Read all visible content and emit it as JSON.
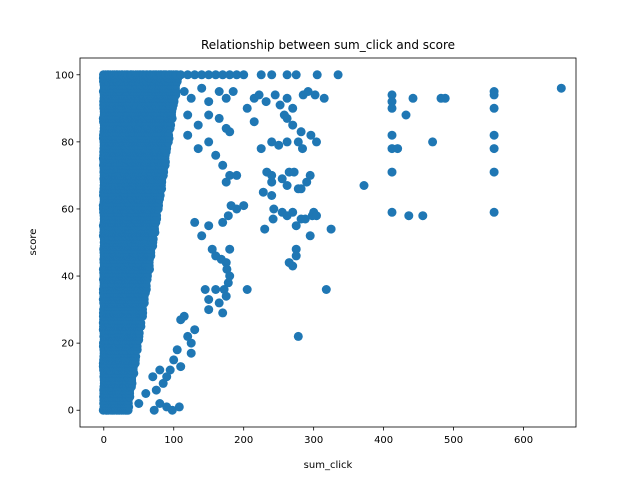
{
  "chart_data": {
    "type": "scatter",
    "title": "Relationship between sum_click and score",
    "xlabel": "sum_click",
    "ylabel": "score",
    "xlim": [
      -34,
      675
    ],
    "ylim": [
      -5,
      105
    ],
    "xticks": [
      0,
      100,
      200,
      300,
      400,
      500,
      600
    ],
    "yticks": [
      0,
      20,
      40,
      60,
      80,
      100
    ],
    "grid": false,
    "color": "#1f77b4",
    "dense_region": {
      "description": "many overlapping points",
      "x_range": [
        0,
        110
      ],
      "y_range": [
        0,
        100
      ]
    },
    "points": [
      [
        110,
        100
      ],
      [
        120,
        100
      ],
      [
        130,
        100
      ],
      [
        140,
        100
      ],
      [
        150,
        100
      ],
      [
        160,
        100
      ],
      [
        170,
        100
      ],
      [
        180,
        100
      ],
      [
        190,
        100
      ],
      [
        200,
        100
      ],
      [
        225,
        100
      ],
      [
        240,
        100
      ],
      [
        262,
        100
      ],
      [
        275,
        100
      ],
      [
        305,
        100
      ],
      [
        335,
        100
      ],
      [
        115,
        95
      ],
      [
        125,
        93
      ],
      [
        140,
        96
      ],
      [
        150,
        92
      ],
      [
        165,
        95
      ],
      [
        175,
        93
      ],
      [
        185,
        95
      ],
      [
        205,
        90
      ],
      [
        215,
        93
      ],
      [
        222,
        94
      ],
      [
        232,
        92
      ],
      [
        245,
        94
      ],
      [
        252,
        91
      ],
      [
        262,
        93
      ],
      [
        270,
        90
      ],
      [
        285,
        94
      ],
      [
        292,
        95
      ],
      [
        302,
        94
      ],
      [
        315,
        93
      ],
      [
        120,
        88
      ],
      [
        135,
        85
      ],
      [
        150,
        88
      ],
      [
        165,
        87
      ],
      [
        175,
        84
      ],
      [
        180,
        83
      ],
      [
        215,
        86
      ],
      [
        258,
        88
      ],
      [
        262,
        87
      ],
      [
        270,
        85
      ],
      [
        282,
        83
      ],
      [
        296,
        82
      ],
      [
        262,
        80
      ],
      [
        278,
        80
      ],
      [
        284,
        78
      ],
      [
        304,
        80
      ],
      [
        225,
        78
      ],
      [
        240,
        80
      ],
      [
        250,
        79
      ],
      [
        120,
        82
      ],
      [
        135,
        78
      ],
      [
        150,
        80
      ],
      [
        160,
        76
      ],
      [
        170,
        73
      ],
      [
        180,
        70
      ],
      [
        175,
        68
      ],
      [
        190,
        70
      ],
      [
        233,
        71
      ],
      [
        240,
        68
      ],
      [
        240,
        70
      ],
      [
        255,
        69
      ],
      [
        262,
        67
      ],
      [
        265,
        71
      ],
      [
        272,
        71
      ],
      [
        278,
        66
      ],
      [
        282,
        66
      ],
      [
        290,
        68
      ],
      [
        295,
        70
      ],
      [
        228,
        65
      ],
      [
        240,
        64
      ],
      [
        243,
        60
      ],
      [
        255,
        59
      ],
      [
        262,
        58
      ],
      [
        270,
        59
      ],
      [
        275,
        55
      ],
      [
        282,
        57
      ],
      [
        288,
        57
      ],
      [
        298,
        58
      ],
      [
        300,
        59
      ],
      [
        304,
        58
      ],
      [
        182,
        61
      ],
      [
        190,
        60
      ],
      [
        200,
        61
      ],
      [
        178,
        58
      ],
      [
        170,
        56
      ],
      [
        130,
        56
      ],
      [
        150,
        55
      ],
      [
        230,
        54
      ],
      [
        242,
        57
      ],
      [
        275,
        48
      ],
      [
        275,
        46
      ],
      [
        265,
        44
      ],
      [
        270,
        43
      ],
      [
        295,
        52
      ],
      [
        325,
        54
      ],
      [
        160,
        46
      ],
      [
        168,
        45
      ],
      [
        175,
        44
      ],
      [
        176,
        42
      ],
      [
        180,
        40
      ],
      [
        178,
        38
      ],
      [
        172,
        36
      ],
      [
        175,
        34
      ],
      [
        165,
        32
      ],
      [
        150,
        30
      ],
      [
        170,
        29
      ],
      [
        180,
        48
      ],
      [
        140,
        52
      ],
      [
        155,
        48
      ],
      [
        205,
        36
      ],
      [
        318,
        36
      ],
      [
        278,
        22
      ],
      [
        160,
        36
      ],
      [
        150,
        33
      ],
      [
        145,
        36
      ],
      [
        130,
        24
      ],
      [
        125,
        20
      ],
      [
        120,
        22
      ],
      [
        115,
        28
      ],
      [
        110,
        27
      ],
      [
        105,
        18
      ],
      [
        110,
        13
      ],
      [
        125,
        17
      ],
      [
        100,
        15
      ],
      [
        95,
        12
      ],
      [
        90,
        10
      ],
      [
        85,
        8
      ],
      [
        80,
        12
      ],
      [
        75,
        6
      ],
      [
        70,
        10
      ],
      [
        60,
        5
      ],
      [
        50,
        2
      ],
      [
        72,
        0
      ],
      [
        80,
        2
      ],
      [
        90,
        1
      ],
      [
        98,
        0
      ],
      [
        108,
        1
      ],
      [
        372,
        67
      ],
      [
        412,
        94
      ],
      [
        412,
        92
      ],
      [
        412,
        90
      ],
      [
        412,
        82
      ],
      [
        412,
        78
      ],
      [
        412,
        71
      ],
      [
        412,
        59
      ],
      [
        420,
        78
      ],
      [
        432,
        88
      ],
      [
        436,
        58
      ],
      [
        442,
        93
      ],
      [
        456,
        58
      ],
      [
        470,
        80
      ],
      [
        482,
        93
      ],
      [
        488,
        93
      ],
      [
        558,
        95
      ],
      [
        558,
        94
      ],
      [
        558,
        90
      ],
      [
        558,
        82
      ],
      [
        558,
        78
      ],
      [
        558,
        71
      ],
      [
        558,
        59
      ],
      [
        654,
        96
      ]
    ]
  }
}
